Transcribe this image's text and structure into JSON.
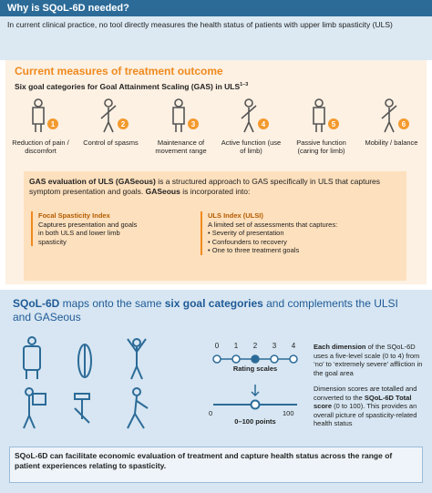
{
  "header": {
    "title": "Why is SQoL-6D needed?",
    "text": "In current clinical practice, no tool directly measures the health status of patients with upper limb spasticity (ULS)"
  },
  "current": {
    "title": "Current measures of treatment outcome",
    "subtitle": "Six goal categories for Goal Attainment Scaling (GAS) in ULS",
    "subtitle_ref": "1–3",
    "categories": [
      {
        "number": "1",
        "label": "Reduction of pain / discomfort"
      },
      {
        "number": "2",
        "label": "Control of spasms"
      },
      {
        "number": "3",
        "label": "Maintenance of movement range"
      },
      {
        "number": "4",
        "label": "Active function (use of limb)"
      },
      {
        "number": "5",
        "label": "Passive function (caring for limb)"
      },
      {
        "number": "6",
        "label": "Mobility / balance"
      }
    ],
    "gaseous": {
      "intro": [
        "GAS evaluation of ULS (GASeous)",
        " is a structured approach to GAS specifically in ULS that captures symptom presentation and goals. ",
        "GASeous",
        " is incorporated into:"
      ],
      "fsi": {
        "title": "Focal Spasticity Index",
        "text": "Captures presentation and goals in both ULS and lower limb spasticity"
      },
      "ulsi": {
        "title": "ULS Index (ULSI)",
        "text": "A limited set of assessments that captures:",
        "bullets": [
          "Severity of presentation",
          "Confounders to recovery",
          "One to three treatment goals"
        ]
      }
    }
  },
  "sqol": {
    "title": [
      "SQoL-6D",
      " maps onto the same ",
      "six goal categories",
      " and complements the ULSI and GASeous"
    ],
    "rating_scale": {
      "points": [
        "0",
        "1",
        "2",
        "3",
        "4"
      ],
      "label": "Rating scales"
    },
    "slider": {
      "min": "0",
      "max": "100",
      "label": "0–100 points"
    },
    "dimension_text": [
      "Each dimension",
      " of the SQoL-6D uses a five-level scale (0 to 4) from ‘no’ to ‘extremely severe’ affliction in the goal area"
    ],
    "score_text": [
      "Dimension scores are totalled and converted to the ",
      "SQoL-6D Total score",
      " (0 to 100). This provides an overall picture of spasticity-related health status"
    ],
    "summary": "SQoL-6D can facilitate economic evaluation of treatment and capture health status across the range of patient experiences relating to spasticity."
  }
}
